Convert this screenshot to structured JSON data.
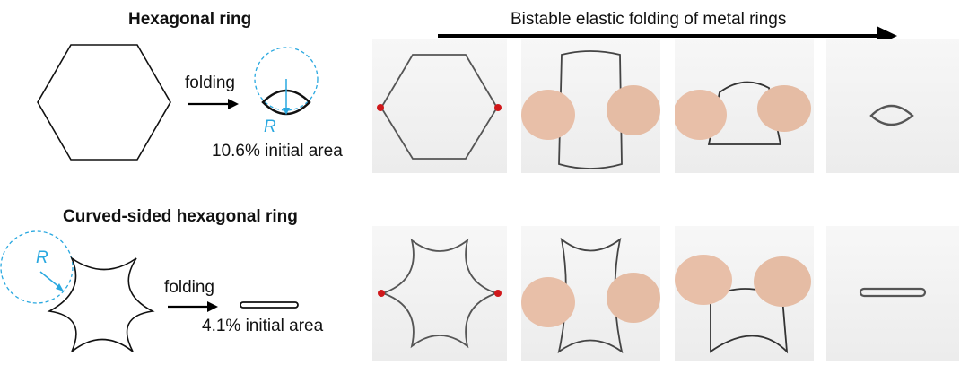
{
  "colors": {
    "accent": "#29a8e0",
    "marker": "#d0181b",
    "ink": "#111111"
  },
  "top": {
    "title": "Hexagonal ring",
    "arrow_label": "folding",
    "radius_label": "R",
    "area_label": "10.6% initial area"
  },
  "bottom": {
    "title": "Curved-sided hexagonal ring",
    "arrow_label": "folding",
    "radius_label": "R",
    "area_label": "4.1% initial area"
  },
  "sequence_label": "Bistable elastic folding of metal rings",
  "photos": {
    "top": [
      "flat hexagonal ring",
      "hands bending ring",
      "hands twisting ring",
      "folded ring"
    ],
    "bottom": [
      "flat curved-sided ring",
      "hands bending ring",
      "hands twisting ring",
      "folded ring"
    ]
  }
}
